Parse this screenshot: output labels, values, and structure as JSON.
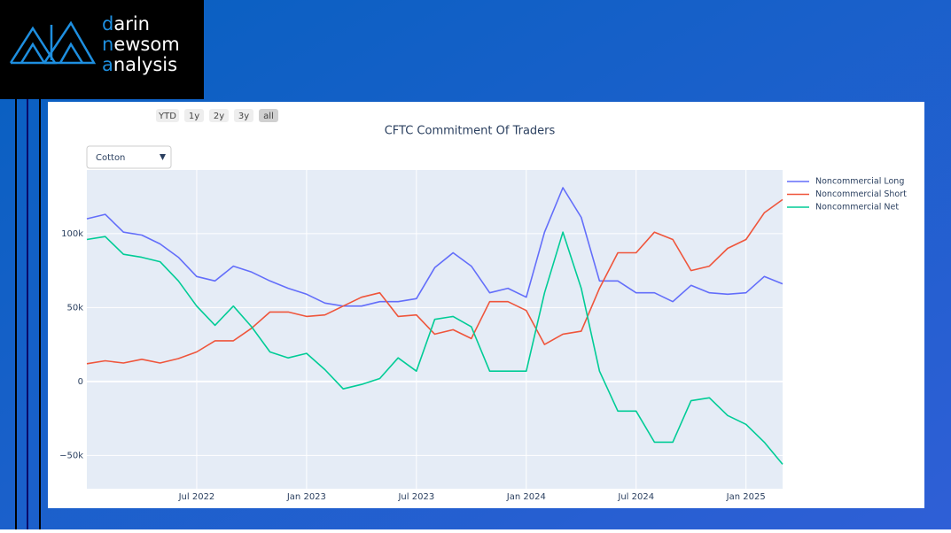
{
  "header": {
    "logo": [
      {
        "accent": "d",
        "rest": "arin"
      },
      {
        "accent": "n",
        "rest": "ewsom"
      },
      {
        "accent": "a",
        "rest": "nalysis"
      }
    ]
  },
  "controls": {
    "range_buttons": [
      "YTD",
      "1y",
      "2y",
      "3y",
      "all"
    ],
    "dropdown": "Cotton"
  },
  "chart_data": {
    "type": "line",
    "title": "CFTC Commitment Of Traders",
    "x": [
      "2022-01",
      "2022-02",
      "2022-03",
      "2022-04",
      "2022-05",
      "2022-06",
      "2022-07",
      "2022-08",
      "2022-09",
      "2022-10",
      "2022-11",
      "2022-12",
      "2023-01",
      "2023-02",
      "2023-03",
      "2023-04",
      "2023-05",
      "2023-06",
      "2023-07",
      "2023-08",
      "2023-09",
      "2023-10",
      "2023-11",
      "2023-12",
      "2024-01",
      "2024-02",
      "2024-03",
      "2024-04",
      "2024-05",
      "2024-06",
      "2024-07",
      "2024-08",
      "2024-09",
      "2024-10",
      "2024-11",
      "2024-12",
      "2025-01",
      "2025-02",
      "2025-03"
    ],
    "series": [
      {
        "name": "Noncommercial Long",
        "color": "#636efa",
        "values": [
          110000,
          113000,
          101000,
          99000,
          93000,
          84000,
          71000,
          68000,
          78000,
          74000,
          68000,
          63000,
          59000,
          53000,
          51000,
          51000,
          54000,
          54000,
          56000,
          77000,
          87000,
          78000,
          60000,
          63000,
          57000,
          101000,
          131000,
          111000,
          68000,
          68000,
          60000,
          60000,
          54000,
          65000,
          60000,
          59000,
          60000,
          71000,
          66000
        ]
      },
      {
        "name": "Noncommercial Short",
        "color": "#EF553B",
        "values": [
          12000,
          14000,
          12500,
          15000,
          12500,
          15500,
          20000,
          27500,
          27500,
          36000,
          47000,
          47000,
          44000,
          45000,
          51000,
          57000,
          60000,
          44000,
          45000,
          32000,
          35000,
          29000,
          54000,
          54000,
          48000,
          25000,
          32000,
          34000,
          63000,
          87000,
          87000,
          101000,
          96000,
          75000,
          78000,
          90000,
          96000,
          114000,
          123000
        ]
      },
      {
        "name": "Noncommercial Net",
        "color": "#00cc96",
        "values": [
          96000,
          98000,
          86000,
          84000,
          81000,
          68000,
          51000,
          38000,
          51000,
          37000,
          20000,
          16000,
          19000,
          8000,
          -5000,
          -2000,
          2000,
          16000,
          7000,
          42000,
          44000,
          37000,
          7000,
          7000,
          7000,
          60000,
          101000,
          63000,
          7000,
          -20000,
          -20000,
          -41000,
          -41000,
          -13000,
          -11000,
          -23000,
          -29000,
          -41000,
          -56000
        ]
      }
    ],
    "xlim": [
      "2022-01",
      "2025-03"
    ],
    "xticks": [
      {
        "value": "2022-07",
        "label": "Jul 2022"
      },
      {
        "value": "2023-01",
        "label": "Jan 2023"
      },
      {
        "value": "2023-07",
        "label": "Jul 2023"
      },
      {
        "value": "2024-01",
        "label": "Jan 2024"
      },
      {
        "value": "2024-07",
        "label": "Jul 2024"
      },
      {
        "value": "2025-01",
        "label": "Jan 2025"
      }
    ],
    "ylim": [
      -72500,
      143000
    ],
    "yticks": [
      {
        "value": -50000,
        "label": "−50k"
      },
      0,
      {
        "value": 50000,
        "label": "50k"
      },
      {
        "value": 100000,
        "label": "100k"
      }
    ],
    "grid": true,
    "legend": "right"
  }
}
